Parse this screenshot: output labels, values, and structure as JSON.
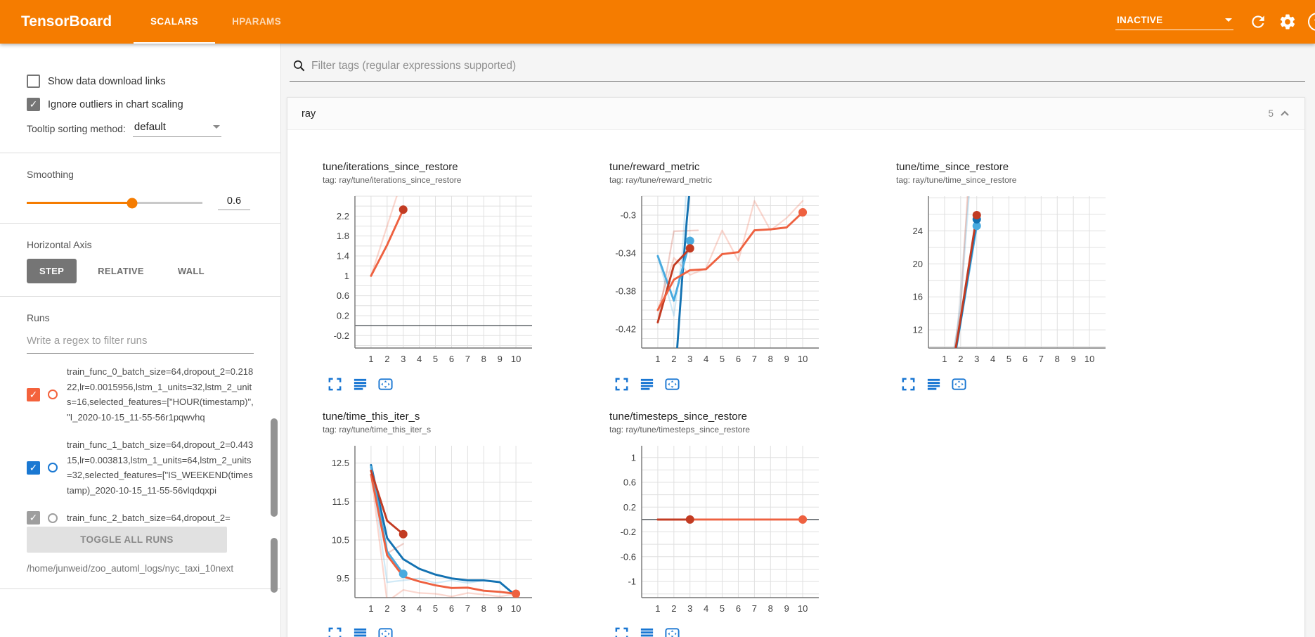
{
  "header": {
    "title": "TensorBoard",
    "tabs": [
      {
        "label": "SCALARS",
        "active": true
      },
      {
        "label": "HPARAMS",
        "active": false
      }
    ],
    "status": "INACTIVE",
    "help_glyph": "?"
  },
  "sidebar": {
    "checkboxes": [
      {
        "label": "Show data download links",
        "checked": false
      },
      {
        "label": "Ignore outliers in chart scaling",
        "checked": true
      }
    ],
    "tooltip_sorting": {
      "label": "Tooltip sorting method:",
      "value": "default"
    },
    "smoothing": {
      "label": "Smoothing",
      "value": "0.6",
      "fraction": 0.6
    },
    "horizontal_axis": {
      "label": "Horizontal Axis",
      "options": [
        {
          "label": "STEP",
          "active": true
        },
        {
          "label": "RELATIVE",
          "active": false
        },
        {
          "label": "WALL",
          "active": false
        }
      ]
    },
    "runs": {
      "label": "Runs",
      "filter_placeholder": "Write a regex to filter runs",
      "items": [
        {
          "color": "#f4623c",
          "checked": true,
          "name": "train_func_0_batch_size=64,dropout_2=0.21822,lr=0.0015956,lstm_1_units=32,lstm_2_units=16,selected_features=[\"HOUR(timestamp)\", \"I_2020-10-15_11-55-56r1pqwvhq"
        },
        {
          "color": "#1a78d2",
          "checked": true,
          "name": "train_func_1_batch_size=64,dropout_2=0.44315,lr=0.003813,lstm_1_units=64,lstm_2_units=32,selected_features=[\"IS_WEEKEND(timestamp)_2020-10-15_11-55-56vlqdqxpi"
        },
        {
          "color": "#9e9e9e",
          "checked": true,
          "name": "train_func_2_batch_size=64,dropout_2="
        }
      ],
      "toggle_all_label": "TOGGLE ALL RUNS",
      "log_path": "/home/junweid/zoo_automl_logs/nyc_taxi_10next"
    }
  },
  "main": {
    "filter_placeholder": "Filter tags (regular expressions supported)",
    "group": {
      "name": "ray",
      "count": "5"
    }
  },
  "palette": {
    "orange": "#ee6140",
    "red": "#c23b22",
    "blue": "#1372b2",
    "cyan": "#49aadf",
    "gray": "#9aa0a6",
    "accent": "#f57c00",
    "icon_blue": "#1976d2"
  },
  "chart_data": [
    {
      "type": "line",
      "title": "tune/iterations_since_restore",
      "tag_line": "tag: ray/tune/iterations_since_restore",
      "ylim": [
        -0.45,
        2.6
      ],
      "grid_step": 0.2,
      "zero_line": true,
      "y_ticks": [
        {
          "v": 2.2,
          "label": "2.2"
        },
        {
          "v": 1.8,
          "label": "1.8"
        },
        {
          "v": 1.4,
          "label": "1.4"
        },
        {
          "v": 1,
          "label": "1"
        },
        {
          "v": 0.6,
          "label": "0.6"
        },
        {
          "v": 0.2,
          "label": "0.2"
        },
        {
          "v": -0.2,
          "label": "-0.2"
        }
      ],
      "x_ticks": [
        1,
        2,
        3,
        4,
        5,
        6,
        7,
        8,
        9,
        10
      ],
      "series": [
        {
          "color": "orange",
          "faded": true,
          "points": [
            [
              1,
              1
            ],
            [
              2,
              2
            ],
            [
              3,
              3
            ]
          ]
        },
        {
          "color": "orange",
          "points": [
            [
              1,
              1
            ],
            [
              2,
              1.62
            ],
            [
              3,
              2.33
            ]
          ],
          "dot": [
            3,
            2.33
          ],
          "dot_color": "red"
        }
      ]
    },
    {
      "type": "line",
      "title": "tune/reward_metric",
      "tag_line": "tag: ray/tune/reward_metric",
      "ylim": [
        -0.44,
        -0.28
      ],
      "grid_step": 0.01,
      "zero_line": false,
      "y_ticks": [
        {
          "v": -0.3,
          "label": "-0.3"
        },
        {
          "v": -0.34,
          "label": "-0.34"
        },
        {
          "v": -0.38,
          "label": "-0.38"
        },
        {
          "v": -0.42,
          "label": "-0.42"
        }
      ],
      "x_ticks": [
        1,
        2,
        3,
        4,
        5,
        6,
        7,
        8,
        9,
        10
      ],
      "series": [
        {
          "color": "orange",
          "faded": true,
          "points": [
            [
              1,
              -0.4
            ],
            [
              2,
              -0.345
            ],
            [
              3,
              -0.363
            ],
            [
              4,
              -0.356
            ],
            [
              5,
              -0.316
            ],
            [
              6,
              -0.348
            ],
            [
              7,
              -0.285
            ],
            [
              8,
              -0.316
            ],
            [
              9,
              -0.303
            ],
            [
              10,
              -0.285
            ]
          ]
        },
        {
          "color": "red",
          "faded": true,
          "points": [
            [
              1,
              -0.413
            ],
            [
              2,
              -0.317
            ],
            [
              3.5,
              -0.316
            ]
          ]
        },
        {
          "color": "cyan",
          "faded": true,
          "points": [
            [
              1,
              -0.343
            ],
            [
              2,
              -0.406
            ],
            [
              2.5,
              -0.345
            ],
            [
              3.2,
              -0.16
            ]
          ]
        },
        {
          "color": "blue",
          "points": [
            [
              1.95,
              -0.5
            ],
            [
              2.5,
              -0.37
            ],
            [
              2.8,
              -0.306
            ],
            [
              3.05,
              -0.26
            ],
            [
              3.35,
              -0.2
            ]
          ]
        },
        {
          "color": "cyan",
          "points": [
            [
              1,
              -0.343
            ],
            [
              2,
              -0.39
            ],
            [
              3,
              -0.327
            ]
          ],
          "dot": [
            3,
            -0.327
          ]
        },
        {
          "color": "red",
          "points": [
            [
              1,
              -0.413
            ],
            [
              2,
              -0.353
            ],
            [
              3,
              -0.335
            ]
          ],
          "dot": [
            3,
            -0.335
          ]
        },
        {
          "color": "orange",
          "points": [
            [
              1,
              -0.4
            ],
            [
              2,
              -0.368
            ],
            [
              3,
              -0.358
            ],
            [
              4,
              -0.357
            ],
            [
              5,
              -0.341
            ],
            [
              6,
              -0.339
            ],
            [
              7,
              -0.316
            ],
            [
              8,
              -0.315
            ],
            [
              9,
              -0.313
            ],
            [
              10,
              -0.297
            ]
          ],
          "dot": [
            10,
            -0.297
          ]
        }
      ]
    },
    {
      "type": "line",
      "title": "tune/time_since_restore",
      "tag_line": "tag: ray/tune/time_since_restore",
      "ylim": [
        9.8,
        28.2
      ],
      "grid_step": 2,
      "zero_line": false,
      "y_ticks": [
        {
          "v": 24,
          "label": "24"
        },
        {
          "v": 20,
          "label": "20"
        },
        {
          "v": 16,
          "label": "16"
        },
        {
          "v": 12,
          "label": "12"
        }
      ],
      "x_ticks": [
        1,
        2,
        3,
        4,
        5,
        6,
        7,
        8,
        9,
        10
      ],
      "series": [
        {
          "color": "gray",
          "faded": true,
          "points": [
            [
              1,
              2
            ],
            [
              1.8,
              12
            ],
            [
              2.5,
              29
            ]
          ]
        },
        {
          "color": "orange",
          "faded": true,
          "points": [
            [
              1,
              2
            ],
            [
              2,
              14.5
            ],
            [
              2.45,
              29
            ]
          ]
        },
        {
          "color": "cyan",
          "faded": true,
          "points": [
            [
              1,
              2
            ],
            [
              2,
              15
            ],
            [
              2.55,
              29
            ]
          ]
        },
        {
          "color": "cyan",
          "points": [
            [
              1,
              1.4
            ],
            [
              2,
              12.9
            ],
            [
              3,
              24.6
            ]
          ],
          "dot": [
            3,
            24.6
          ]
        },
        {
          "color": "blue",
          "points": [
            [
              1,
              1.5
            ],
            [
              2,
              13.1
            ],
            [
              3,
              25.4
            ]
          ],
          "dot": [
            3,
            25.4
          ]
        },
        {
          "color": "red",
          "points": [
            [
              1,
              1.5
            ],
            [
              2,
              13.4
            ],
            [
              3,
              25.9
            ]
          ],
          "dot": [
            3,
            25.9
          ]
        }
      ]
    },
    {
      "type": "line",
      "title": "tune/time_this_iter_s",
      "tag_line": "tag: ray/tune/time_this_iter_s",
      "ylim": [
        9.0,
        12.95
      ],
      "grid_step": 0.5,
      "zero_line": false,
      "y_ticks": [
        {
          "v": 12.5,
          "label": "12.5"
        },
        {
          "v": 11.5,
          "label": "11.5"
        },
        {
          "v": 10.5,
          "label": "10.5"
        },
        {
          "v": 9.5,
          "label": "9.5"
        }
      ],
      "x_ticks": [
        1,
        2,
        3,
        4,
        5,
        6,
        7,
        8,
        9,
        10
      ],
      "series": [
        {
          "color": "cyan",
          "faded": true,
          "points": [
            [
              1,
              12.4
            ],
            [
              2,
              9.4
            ],
            [
              3,
              9.45
            ],
            [
              4,
              9.5
            ],
            [
              5,
              9.38
            ],
            [
              6,
              9.45
            ],
            [
              7,
              9.38
            ],
            [
              8,
              9.45
            ],
            [
              9,
              9.42
            ]
          ]
        },
        {
          "color": "orange",
          "faded": true,
          "points": [
            [
              1,
              12.2
            ],
            [
              2,
              8.9
            ],
            [
              3,
              9.2
            ],
            [
              4,
              9.12
            ],
            [
              5,
              9.1
            ],
            [
              6,
              9.03
            ],
            [
              7,
              9.12
            ],
            [
              8,
              9.08
            ],
            [
              9,
              9.03
            ],
            [
              10,
              9.1
            ]
          ]
        },
        {
          "color": "red",
          "faded": true,
          "points": [
            [
              1,
              12.3
            ],
            [
              2,
              10.15
            ],
            [
              3,
              10.4
            ]
          ]
        },
        {
          "color": "blue",
          "points": [
            [
              1,
              12.45
            ],
            [
              2,
              10.55
            ],
            [
              3,
              10.0
            ],
            [
              4,
              9.75
            ],
            [
              5,
              9.6
            ],
            [
              6,
              9.5
            ],
            [
              7,
              9.45
            ],
            [
              8,
              9.45
            ],
            [
              9,
              9.4
            ],
            [
              10,
              9.05
            ]
          ]
        },
        {
          "color": "cyan",
          "points": [
            [
              1,
              12.4
            ],
            [
              2,
              10.2
            ],
            [
              3,
              9.62
            ]
          ],
          "dot": [
            3,
            9.62
          ]
        },
        {
          "color": "orange",
          "points": [
            [
              1,
              12.2
            ],
            [
              2,
              10.1
            ],
            [
              3,
              9.55
            ],
            [
              4,
              9.42
            ],
            [
              5,
              9.32
            ],
            [
              6,
              9.25
            ],
            [
              7,
              9.26
            ],
            [
              8,
              9.18
            ],
            [
              9,
              9.15
            ],
            [
              10,
              9.1
            ]
          ],
          "dot": [
            10,
            9.1
          ]
        },
        {
          "color": "red",
          "points": [
            [
              1,
              12.3
            ],
            [
              2,
              11.0
            ],
            [
              3,
              10.65
            ]
          ],
          "dot": [
            3,
            10.65
          ]
        }
      ]
    },
    {
      "type": "line",
      "title": "tune/timesteps_since_restore",
      "tag_line": "tag: ray/tune/timesteps_since_restore",
      "ylim": [
        -1.26,
        1.19
      ],
      "grid_step": 0.2,
      "zero_line": true,
      "y_ticks": [
        {
          "v": 1,
          "label": "1"
        },
        {
          "v": 0.6,
          "label": "0.6"
        },
        {
          "v": 0.2,
          "label": "0.2"
        },
        {
          "v": -0.2,
          "label": "-0.2"
        },
        {
          "v": -0.6,
          "label": "-0.6"
        },
        {
          "v": -1,
          "label": "-1"
        }
      ],
      "x_ticks": [
        1,
        2,
        3,
        4,
        5,
        6,
        7,
        8,
        9,
        10
      ],
      "series": [
        {
          "color": "orange",
          "points": [
            [
              1,
              0
            ],
            [
              10,
              0
            ]
          ],
          "dot": [
            10,
            0
          ]
        },
        {
          "color": "red",
          "points": [
            [
              1,
              0
            ],
            [
              3,
              0
            ]
          ],
          "dot": [
            3,
            0
          ]
        }
      ]
    }
  ]
}
